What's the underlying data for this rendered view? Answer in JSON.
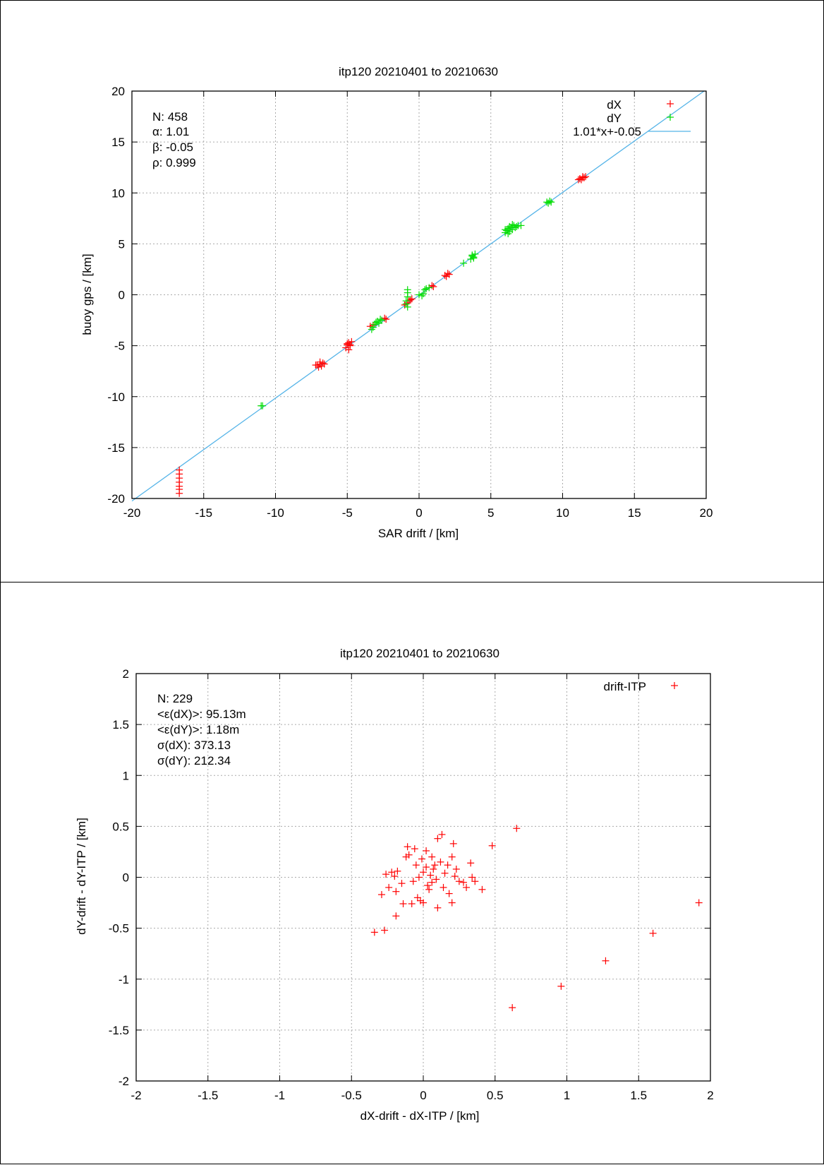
{
  "chart_data": [
    {
      "type": "scatter",
      "title": "itp120 20210401 to 20210630",
      "xlabel": "SAR drift / [km]",
      "ylabel": "buoy gps / [km]",
      "xlim": [
        -20,
        20
      ],
      "ylim": [
        -20,
        20
      ],
      "xticks": [
        "-20",
        "-15",
        "-10",
        "-5",
        "0",
        "5",
        "10",
        "15",
        "20"
      ],
      "yticks": [
        "-20",
        "-15",
        "-10",
        "-5",
        "0",
        "5",
        "10",
        "15",
        "20"
      ],
      "grid": true,
      "legend_position": "top-right",
      "stats": [
        "N: 458",
        "α: 1.01",
        "β: -0.05",
        "ρ: 0.999"
      ],
      "colors": {
        "dX": "#ff0000",
        "dY": "#00dd00",
        "fit": "#55b4e8"
      },
      "series": [
        {
          "name": "dX",
          "points": [
            [
              -16.7,
              -17.2
            ],
            [
              -16.7,
              -17.6
            ],
            [
              -16.7,
              -18.0
            ],
            [
              -16.7,
              -18.4
            ],
            [
              -16.7,
              -18.8
            ],
            [
              -16.7,
              -19.1
            ],
            [
              -16.7,
              -19.5
            ],
            [
              -7.1,
              -6.9
            ],
            [
              -6.9,
              -6.8
            ],
            [
              -6.8,
              -7.0
            ],
            [
              -6.7,
              -6.7
            ],
            [
              -7.0,
              -7.1
            ],
            [
              -6.6,
              -6.8
            ],
            [
              -6.9,
              -6.6
            ],
            [
              -7.2,
              -6.9
            ],
            [
              -5.0,
              -4.9
            ],
            [
              -4.9,
              -4.7
            ],
            [
              -4.8,
              -5.0
            ],
            [
              -5.1,
              -5.2
            ],
            [
              -4.9,
              -5.4
            ],
            [
              -4.7,
              -4.6
            ],
            [
              -5.0,
              -4.8
            ],
            [
              -4.8,
              -4.9
            ],
            [
              -3.4,
              -3.1
            ],
            [
              -3.2,
              -3.0
            ],
            [
              -2.4,
              -2.3
            ],
            [
              -2.3,
              -2.4
            ],
            [
              -1.0,
              -1.0
            ],
            [
              -0.8,
              -0.8
            ],
            [
              -0.6,
              -0.5
            ],
            [
              -0.5,
              -0.4
            ],
            [
              -0.7,
              -0.6
            ],
            [
              0.9,
              0.9
            ],
            [
              1.0,
              0.8
            ],
            [
              1.8,
              1.9
            ],
            [
              2.0,
              2.1
            ],
            [
              1.9,
              1.8
            ],
            [
              2.1,
              2.0
            ],
            [
              11.2,
              11.4
            ],
            [
              11.4,
              11.6
            ],
            [
              11.5,
              11.5
            ],
            [
              11.3,
              11.3
            ],
            [
              11.6,
              11.6
            ],
            [
              11.4,
              11.5
            ],
            [
              11.1,
              11.3
            ]
          ]
        },
        {
          "name": "dY",
          "points": [
            [
              -11.0,
              -10.9
            ],
            [
              -10.9,
              -10.9
            ],
            [
              -3.2,
              -3.2
            ],
            [
              -3.1,
              -2.9
            ],
            [
              -3.0,
              -2.7
            ],
            [
              -2.9,
              -2.6
            ],
            [
              -2.8,
              -2.8
            ],
            [
              -2.6,
              -2.5
            ],
            [
              -3.3,
              -3.4
            ],
            [
              -2.7,
              -2.4
            ],
            [
              -0.9,
              -0.6
            ],
            [
              -0.8,
              -0.2
            ],
            [
              -0.8,
              0.2
            ],
            [
              -0.8,
              0.5
            ],
            [
              -0.8,
              -1.2
            ],
            [
              -0.9,
              -0.9
            ],
            [
              0.0,
              0.0
            ],
            [
              0.2,
              -0.1
            ],
            [
              0.4,
              0.5
            ],
            [
              0.5,
              0.6
            ],
            [
              0.7,
              0.7
            ],
            [
              0.3,
              0.1
            ],
            [
              3.1,
              3.1
            ],
            [
              3.6,
              3.5
            ],
            [
              3.8,
              3.7
            ],
            [
              3.7,
              3.9
            ],
            [
              3.9,
              4.0
            ],
            [
              3.8,
              3.6
            ],
            [
              3.7,
              3.8
            ],
            [
              6.0,
              6.1
            ],
            [
              6.1,
              6.3
            ],
            [
              6.2,
              6.5
            ],
            [
              6.3,
              6.2
            ],
            [
              6.4,
              6.6
            ],
            [
              6.5,
              6.4
            ],
            [
              6.6,
              6.8
            ],
            [
              6.7,
              6.6
            ],
            [
              6.8,
              6.7
            ],
            [
              6.9,
              6.8
            ],
            [
              7.1,
              6.8
            ],
            [
              6.2,
              6.0
            ],
            [
              6.5,
              6.9
            ],
            [
              6.3,
              6.7
            ],
            [
              6.0,
              6.4
            ],
            [
              8.9,
              9.1
            ],
            [
              9.1,
              9.2
            ],
            [
              9.0,
              9.0
            ],
            [
              9.2,
              9.1
            ]
          ]
        }
      ],
      "fit": {
        "label": "1.01*x+-0.05",
        "slope": 1.01,
        "intercept": -0.05
      }
    },
    {
      "type": "scatter",
      "title": "itp120 20210401 to 20210630",
      "xlabel": "dX-drift - dX-ITP / [km]",
      "ylabel": "dY-drift - dY-ITP / [km]",
      "xlim": [
        -2,
        2
      ],
      "ylim": [
        -2,
        2
      ],
      "xticks": [
        "-2",
        "-1.5",
        "-1",
        "-0.5",
        "0",
        "0.5",
        "1",
        "1.5",
        "2"
      ],
      "yticks": [
        "-2",
        "-1.5",
        "-1",
        "-0.5",
        "0",
        "0.5",
        "1",
        "1.5",
        "2"
      ],
      "grid": true,
      "legend_position": "top-right",
      "stats": [
        "N: 229",
        "<ε(dX)>:  95.13m",
        "<ε(dY)>: 1.18m",
        "σ(dX):  373.13",
        "σ(dY):  212.34"
      ],
      "colors": {
        "drift-ITP": "#ff0000"
      },
      "series": [
        {
          "name": "drift-ITP",
          "points": [
            [
              0.65,
              0.48
            ],
            [
              0.48,
              0.31
            ],
            [
              1.92,
              -0.25
            ],
            [
              1.6,
              -0.55
            ],
            [
              1.27,
              -0.82
            ],
            [
              0.96,
              -1.07
            ],
            [
              0.62,
              -1.28
            ],
            [
              -0.34,
              -0.54
            ],
            [
              -0.27,
              -0.52
            ],
            [
              -0.19,
              -0.38
            ],
            [
              -0.29,
              -0.17
            ],
            [
              -0.24,
              -0.1
            ],
            [
              -0.26,
              0.03
            ],
            [
              -0.22,
              0.05
            ],
            [
              -0.18,
              0.06
            ],
            [
              -0.14,
              -0.26
            ],
            [
              -0.08,
              -0.26
            ],
            [
              -0.04,
              -0.2
            ],
            [
              -0.12,
              0.2
            ],
            [
              -0.1,
              0.22
            ],
            [
              -0.11,
              0.3
            ],
            [
              -0.06,
              0.28
            ],
            [
              0.02,
              0.26
            ],
            [
              0.06,
              0.2
            ],
            [
              0.1,
              0.38
            ],
            [
              0.13,
              0.42
            ],
            [
              0.21,
              0.33
            ],
            [
              0.2,
              0.2
            ],
            [
              0.17,
              0.12
            ],
            [
              0.23,
              0.08
            ],
            [
              0.33,
              0.14
            ],
            [
              0.34,
              0.0
            ],
            [
              0.3,
              -0.1
            ],
            [
              0.25,
              -0.04
            ],
            [
              0.28,
              -0.05
            ],
            [
              0.41,
              -0.12
            ],
            [
              0.36,
              -0.04
            ],
            [
              0.2,
              -0.25
            ],
            [
              0.1,
              -0.3
            ],
            [
              0.0,
              -0.25
            ],
            [
              -0.02,
              -0.23
            ],
            [
              0.04,
              -0.12
            ],
            [
              0.06,
              -0.05
            ],
            [
              -0.03,
              0.0
            ],
            [
              0.0,
              0.05
            ],
            [
              0.02,
              0.1
            ],
            [
              0.05,
              0.02
            ],
            [
              0.07,
              0.08
            ],
            [
              0.09,
              -0.02
            ],
            [
              0.12,
              0.15
            ],
            [
              0.15,
              0.04
            ],
            [
              -0.05,
              0.12
            ],
            [
              -0.07,
              -0.04
            ],
            [
              -0.15,
              -0.06
            ],
            [
              -0.19,
              -0.14
            ],
            [
              -0.2,
              0.01
            ],
            [
              0.03,
              -0.08
            ],
            [
              0.08,
              0.12
            ],
            [
              -0.01,
              0.18
            ],
            [
              0.14,
              -0.1
            ],
            [
              0.18,
              -0.16
            ],
            [
              0.22,
              0.01
            ]
          ]
        }
      ]
    }
  ]
}
